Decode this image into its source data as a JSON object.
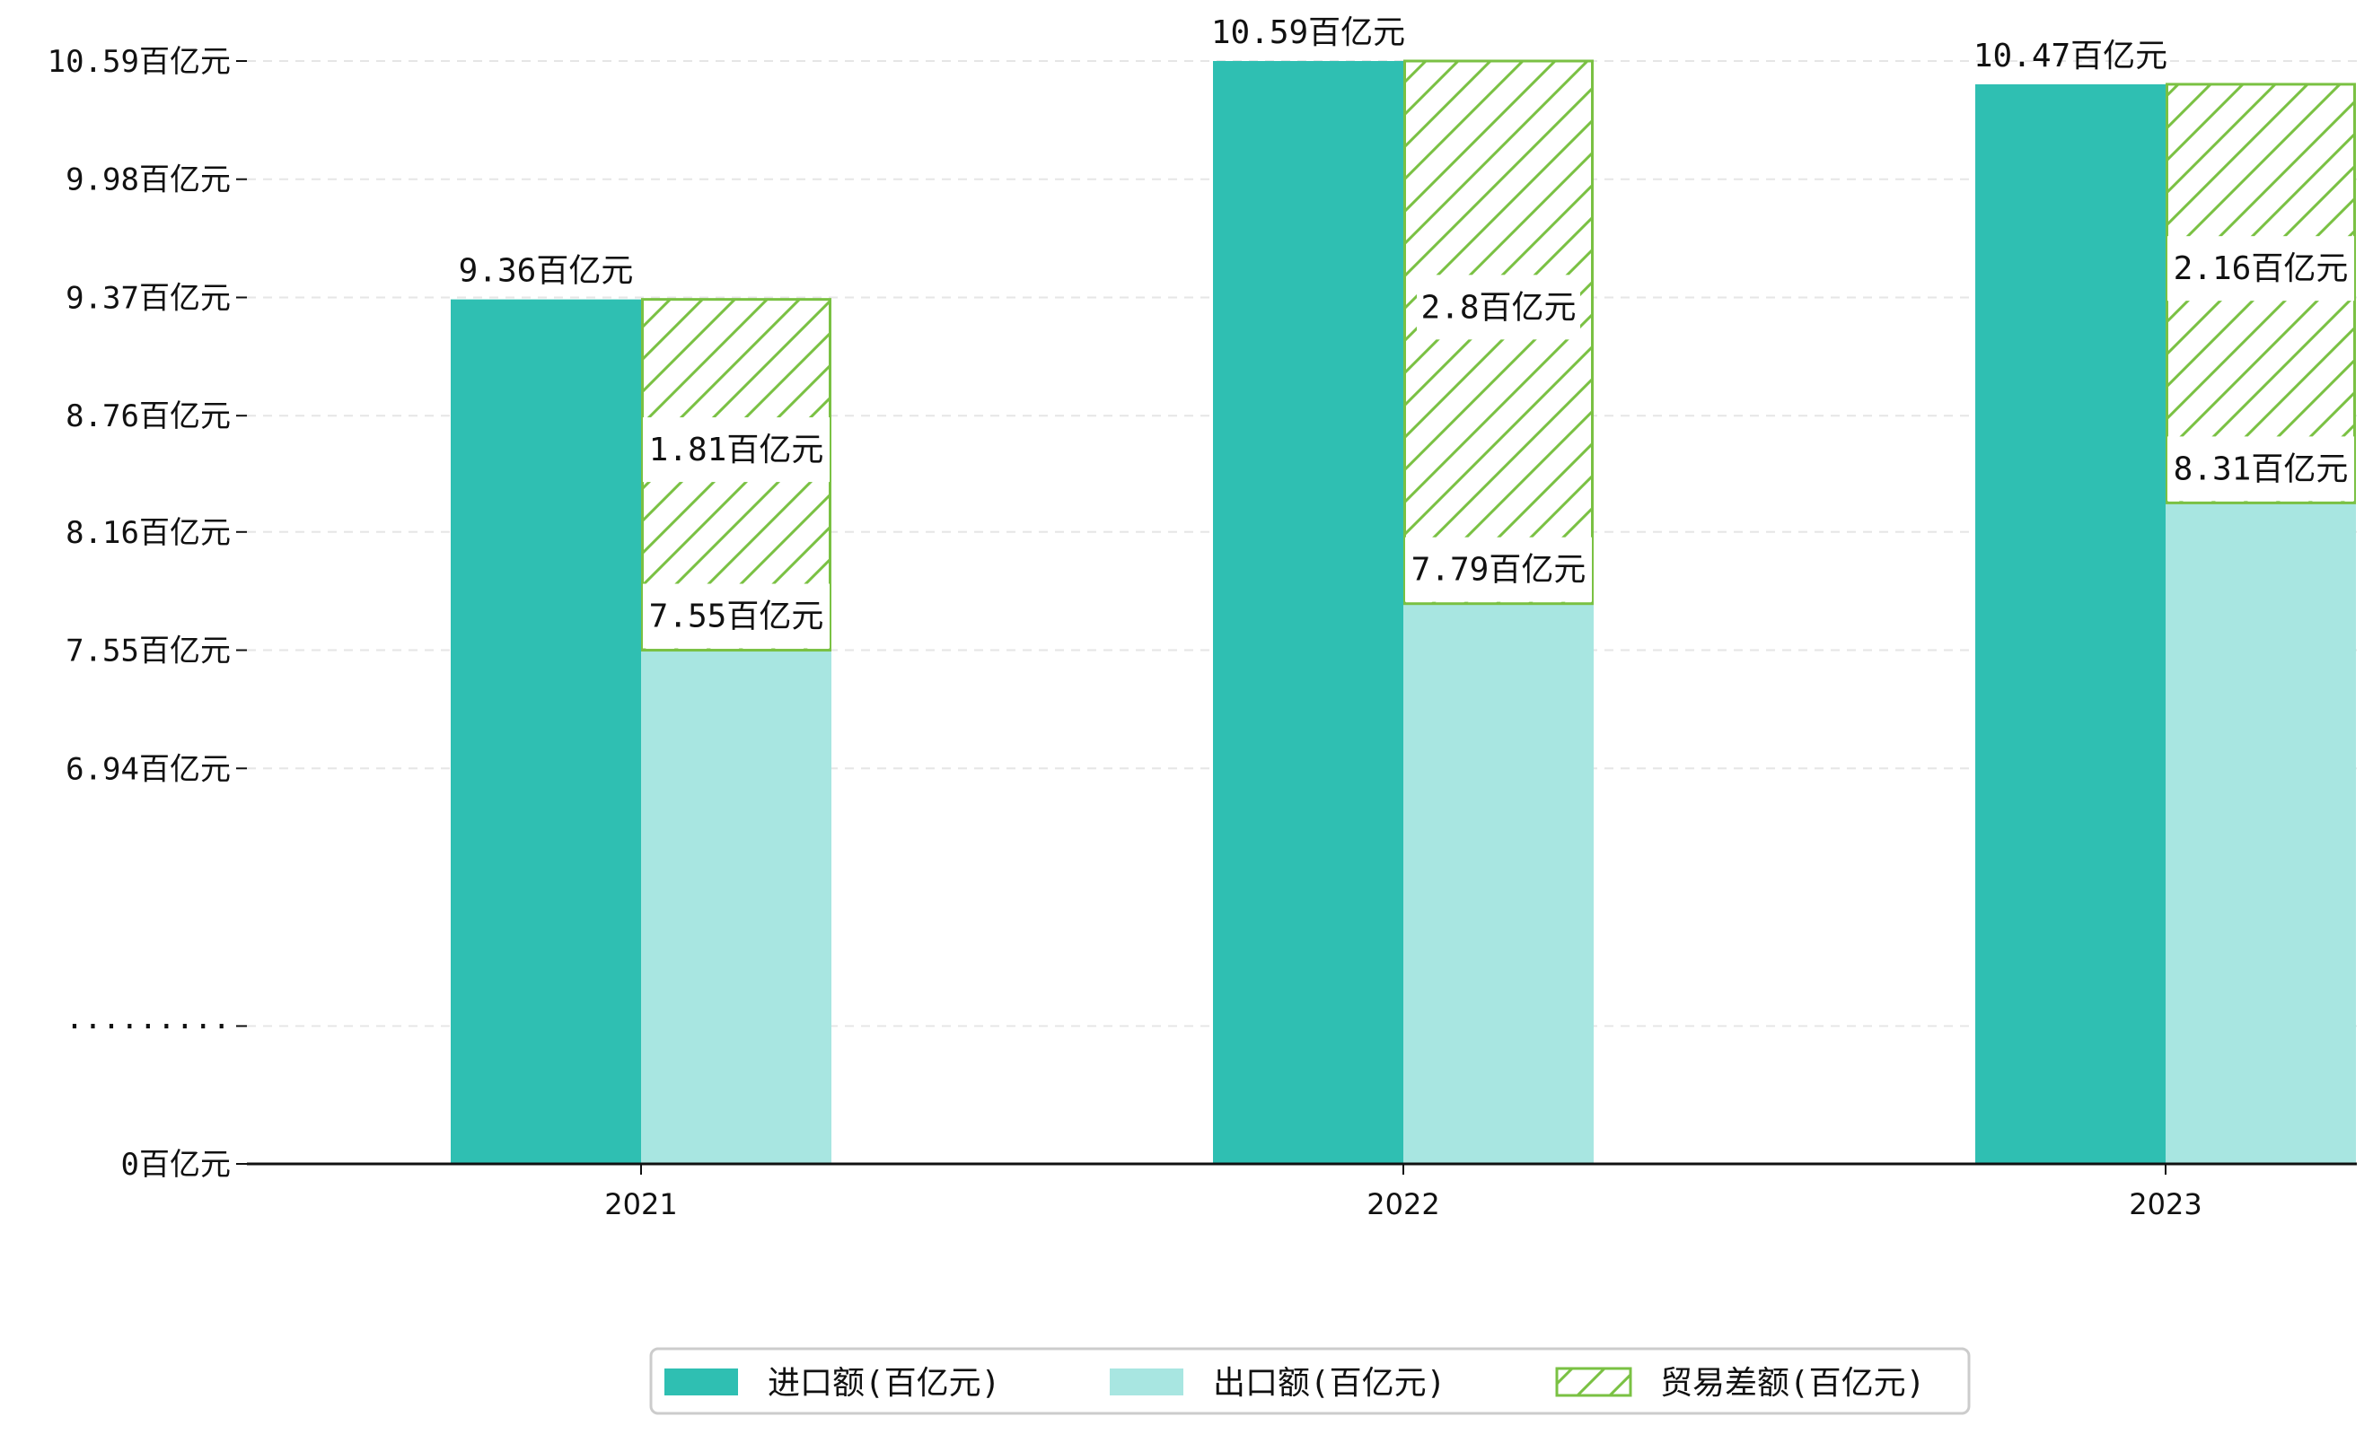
{
  "chart_data": {
    "type": "bar",
    "categories": [
      "2021",
      "2022",
      "2023"
    ],
    "series": [
      {
        "name": "进口额(百亿元)",
        "values": [
          9.36,
          10.59,
          10.47
        ],
        "color": "#2fbfb2"
      },
      {
        "name": "出口额(百亿元)",
        "values": [
          7.55,
          7.79,
          8.31
        ],
        "color": "#a8e6e1"
      },
      {
        "name": "贸易差额(百亿元)",
        "values": [
          1.81,
          2.8,
          2.16
        ],
        "color": "#7ac143",
        "pattern": "hatch"
      }
    ],
    "value_labels": {
      "import": [
        "9.36百亿元",
        "10.59百亿元",
        "10.47百亿元"
      ],
      "export": [
        "7.55百亿元",
        "7.79百亿元",
        "8.31百亿元"
      ],
      "diff": [
        "1.81百亿元",
        "2.8百亿元",
        "2.16百亿元"
      ]
    },
    "y_ticks": [
      {
        "label": "0百亿元",
        "value": 0
      },
      {
        "label": "·········",
        "value": null
      },
      {
        "label": "6.94百亿元",
        "value": 6.94
      },
      {
        "label": "7.55百亿元",
        "value": 7.55
      },
      {
        "label": "8.16百亿元",
        "value": 8.16
      },
      {
        "label": "8.76百亿元",
        "value": 8.76
      },
      {
        "label": "9.37百亿元",
        "value": 9.37
      },
      {
        "label": "9.98百亿元",
        "value": 9.98
      },
      {
        "label": "10.59百亿元",
        "value": 10.59
      }
    ],
    "ylim_broken": [
      6.33,
      10.59
    ],
    "grid": true,
    "legend_position": "bottom-center",
    "title": "",
    "xlabel": "",
    "ylabel": ""
  }
}
